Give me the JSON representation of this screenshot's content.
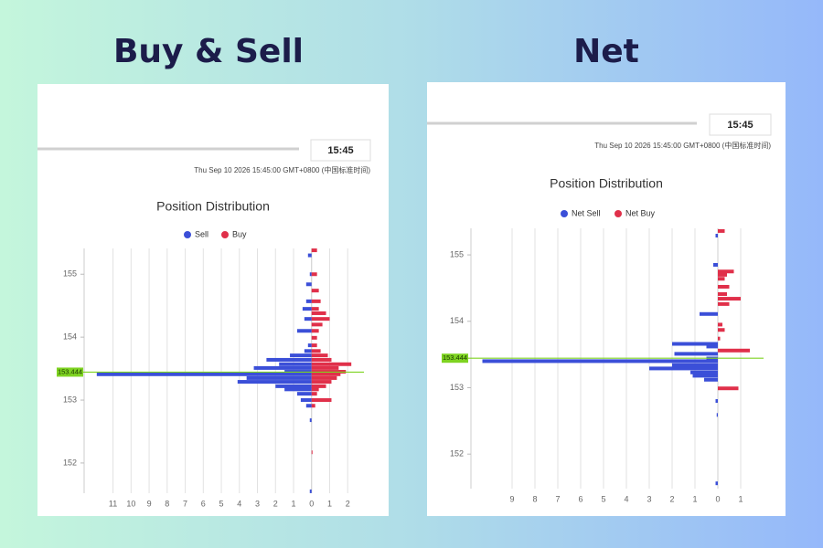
{
  "chart_data": [
    {
      "heading": "Buy & Sell",
      "time": "15:45",
      "timestamp": "Thu Sep 10 2026 15:45:00 GMT+0800 (中国标准时间)",
      "type": "bar",
      "orientation": "horizontal",
      "title": "Position Distribution",
      "y": [
        155.38,
        155.3,
        155.0,
        154.84,
        154.74,
        154.57,
        154.45,
        154.38,
        154.29,
        154.2,
        154.1,
        153.99,
        153.87,
        153.78,
        153.71,
        153.64,
        153.57,
        153.51,
        153.45,
        153.41,
        153.35,
        153.29,
        153.22,
        153.17,
        153.1,
        153.0,
        152.91,
        152.68,
        152.17,
        151.55
      ],
      "series": [
        {
          "name": "Sell",
          "color": "#3b4fd8",
          "values": [
            null,
            -0.2,
            -0.1,
            -0.3,
            null,
            -0.3,
            -0.5,
            null,
            -0.4,
            null,
            -0.8,
            null,
            -0.2,
            -0.4,
            -1.2,
            -2.5,
            -1.8,
            -3.2,
            -1.5,
            -11.9,
            -3.6,
            -4.1,
            -2.0,
            -1.5,
            -0.8,
            -0.6,
            -0.3,
            -0.1,
            null,
            -0.1
          ]
        },
        {
          "name": "Buy",
          "color": "#e0304a",
          "values": [
            0.3,
            null,
            0.3,
            null,
            0.4,
            0.5,
            0.4,
            0.8,
            1.0,
            0.6,
            0.4,
            0.3,
            0.3,
            0.5,
            0.9,
            1.1,
            2.2,
            1.5,
            1.9,
            1.6,
            1.4,
            1.1,
            0.8,
            0.4,
            0.3,
            1.1,
            0.2,
            null,
            0.05,
            null
          ]
        }
      ],
      "xlim": [
        -12.6,
        2.9
      ],
      "xticks": [
        {
          "value": -11,
          "label": "11"
        },
        {
          "value": -10,
          "label": "10"
        },
        {
          "value": -9,
          "label": "9"
        },
        {
          "value": -8,
          "label": "8"
        },
        {
          "value": -7,
          "label": "7"
        },
        {
          "value": -6,
          "label": "6"
        },
        {
          "value": -5,
          "label": "5"
        },
        {
          "value": -4,
          "label": "4"
        },
        {
          "value": -3,
          "label": "3"
        },
        {
          "value": -2,
          "label": "2"
        },
        {
          "value": -1,
          "label": "1"
        },
        0,
        1,
        2
      ],
      "ylim": [
        151.52,
        155.41
      ],
      "yticks": [
        152,
        153,
        154,
        155
      ],
      "grid": true,
      "reference_line": {
        "value": 153.444,
        "color": "#7ed321"
      }
    },
    {
      "heading": "Net",
      "time": "15:45",
      "timestamp": "Thu Sep 10 2026 15:45:00 GMT+0800 (中国标准时间)",
      "type": "bar",
      "orientation": "horizontal",
      "title": "Position Distribution",
      "y": [
        155.36,
        155.29,
        154.85,
        154.75,
        154.7,
        154.64,
        154.52,
        154.41,
        154.34,
        154.26,
        154.11,
        153.95,
        153.87,
        153.74,
        153.66,
        153.62,
        153.56,
        153.51,
        153.44,
        153.4,
        153.34,
        153.29,
        153.23,
        153.18,
        153.12,
        152.99,
        152.8,
        152.59,
        151.56
      ],
      "series": [
        {
          "name": "Net Sell",
          "color": "#3b4fd8",
          "values": [
            null,
            -0.1,
            -0.2,
            null,
            null,
            null,
            null,
            null,
            null,
            null,
            -0.8,
            null,
            null,
            null,
            -2.0,
            -0.5,
            null,
            -1.9,
            -0.5,
            -10.3,
            -2.0,
            -3.0,
            -1.2,
            -1.1,
            -0.6,
            null,
            -0.1,
            -0.05,
            -0.1
          ]
        },
        {
          "name": "Net Buy",
          "color": "#e0304a",
          "values": [
            0.3,
            null,
            null,
            0.7,
            0.4,
            0.3,
            0.5,
            0.4,
            1.0,
            0.5,
            null,
            0.2,
            0.3,
            0.1,
            null,
            null,
            1.4,
            null,
            null,
            null,
            null,
            null,
            null,
            null,
            null,
            0.9,
            null,
            null,
            null
          ]
        }
      ],
      "xlim": [
        -10.8,
        2.0
      ],
      "xticks": [
        {
          "value": -9,
          "label": "9"
        },
        {
          "value": -8,
          "label": "8"
        },
        {
          "value": -7,
          "label": "7"
        },
        {
          "value": -6,
          "label": "6"
        },
        {
          "value": -5,
          "label": "5"
        },
        {
          "value": -4,
          "label": "4"
        },
        {
          "value": -3,
          "label": "3"
        },
        {
          "value": -2,
          "label": "2"
        },
        {
          "value": -1,
          "label": "1"
        },
        0,
        1
      ],
      "ylim": [
        151.48,
        155.4
      ],
      "yticks": [
        152,
        153,
        154,
        155
      ],
      "grid": true,
      "reference_line": {
        "value": 153.444,
        "color": "#7ed321"
      }
    }
  ]
}
